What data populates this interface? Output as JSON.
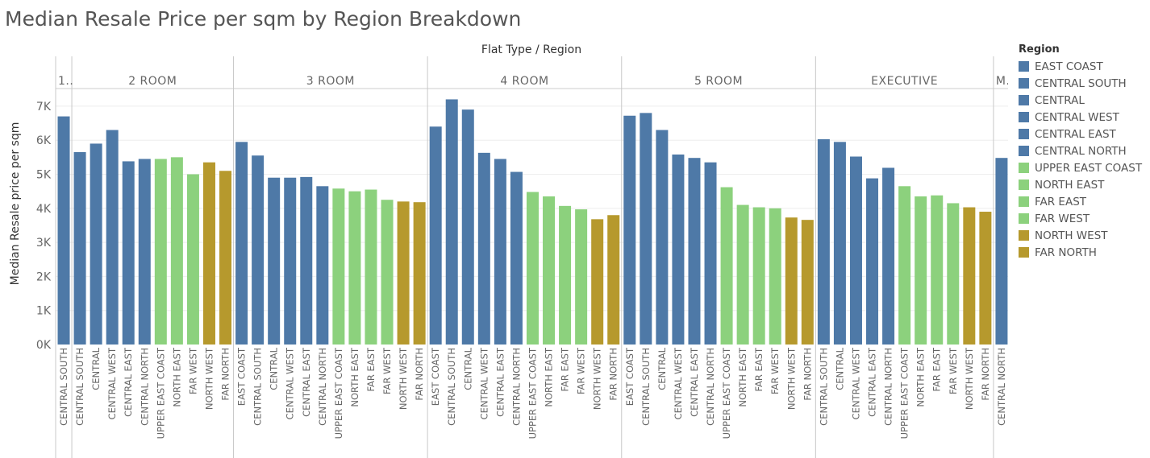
{
  "chart_data": {
    "type": "bar",
    "title": "Median Resale Price per sqm by Region Breakdown",
    "column_header": "Flat Type  /  Region",
    "ylabel": "Median Resale price per sqm",
    "ylim": [
      0,
      7500
    ],
    "yticks": [
      0,
      1000,
      2000,
      3000,
      4000,
      5000,
      6000,
      7000
    ],
    "ytick_labels": [
      "0K",
      "1K",
      "2K",
      "3K",
      "4K",
      "5K",
      "6K",
      "7K"
    ],
    "grid": true,
    "legend_position": "right",
    "legend_title": "Region",
    "legend": [
      {
        "name": "EAST COAST",
        "color": "#4e79a7"
      },
      {
        "name": "CENTRAL SOUTH",
        "color": "#4e79a7"
      },
      {
        "name": "CENTRAL",
        "color": "#4e79a7"
      },
      {
        "name": "CENTRAL WEST",
        "color": "#4e79a7"
      },
      {
        "name": "CENTRAL EAST",
        "color": "#4e79a7"
      },
      {
        "name": "CENTRAL NORTH",
        "color": "#4e79a7"
      },
      {
        "name": "UPPER EAST COAST",
        "color": "#8cd17d"
      },
      {
        "name": "NORTH EAST",
        "color": "#8cd17d"
      },
      {
        "name": "FAR EAST",
        "color": "#8cd17d"
      },
      {
        "name": "FAR WEST",
        "color": "#8cd17d"
      },
      {
        "name": "NORTH WEST",
        "color": "#b6992d"
      },
      {
        "name": "FAR NORTH",
        "color": "#b6992d"
      }
    ],
    "panels": [
      {
        "label": "1..",
        "bars": [
          [
            "CENTRAL SOUTH",
            6700
          ]
        ]
      },
      {
        "label": "2 ROOM",
        "bars": [
          [
            "CENTRAL SOUTH",
            5650
          ],
          [
            "CENTRAL",
            5900
          ],
          [
            "CENTRAL WEST",
            6300
          ],
          [
            "CENTRAL EAST",
            5380
          ],
          [
            "CENTRAL NORTH",
            5450
          ],
          [
            "UPPER EAST COAST",
            5450
          ],
          [
            "NORTH EAST",
            5500
          ],
          [
            "FAR WEST",
            5000
          ],
          [
            "NORTH WEST",
            5350
          ],
          [
            "FAR NORTH",
            5100
          ]
        ]
      },
      {
        "label": "3 ROOM",
        "bars": [
          [
            "EAST COAST",
            5950
          ],
          [
            "CENTRAL SOUTH",
            5550
          ],
          [
            "CENTRAL",
            4900
          ],
          [
            "CENTRAL WEST",
            4900
          ],
          [
            "CENTRAL EAST",
            4920
          ],
          [
            "CENTRAL NORTH",
            4650
          ],
          [
            "UPPER EAST COAST",
            4580
          ],
          [
            "NORTH EAST",
            4500
          ],
          [
            "FAR EAST",
            4550
          ],
          [
            "FAR WEST",
            4250
          ],
          [
            "NORTH WEST",
            4200
          ],
          [
            "FAR NORTH",
            4180
          ]
        ]
      },
      {
        "label": "4 ROOM",
        "bars": [
          [
            "EAST COAST",
            6400
          ],
          [
            "CENTRAL SOUTH",
            7200
          ],
          [
            "CENTRAL",
            6900
          ],
          [
            "CENTRAL WEST",
            5630
          ],
          [
            "CENTRAL EAST",
            5450
          ],
          [
            "CENTRAL NORTH",
            5070
          ],
          [
            "UPPER EAST COAST",
            4480
          ],
          [
            "NORTH EAST",
            4350
          ],
          [
            "FAR EAST",
            4070
          ],
          [
            "FAR WEST",
            3970
          ],
          [
            "NORTH WEST",
            3680
          ],
          [
            "FAR NORTH",
            3800
          ]
        ]
      },
      {
        "label": "5 ROOM",
        "bars": [
          [
            "EAST COAST",
            6720
          ],
          [
            "CENTRAL SOUTH",
            6800
          ],
          [
            "CENTRAL",
            6300
          ],
          [
            "CENTRAL WEST",
            5580
          ],
          [
            "CENTRAL EAST",
            5480
          ],
          [
            "CENTRAL NORTH",
            5350
          ],
          [
            "UPPER EAST COAST",
            4620
          ],
          [
            "NORTH EAST",
            4100
          ],
          [
            "FAR EAST",
            4030
          ],
          [
            "FAR WEST",
            4000
          ],
          [
            "NORTH WEST",
            3730
          ],
          [
            "FAR NORTH",
            3660
          ]
        ]
      },
      {
        "label": "EXECUTIVE",
        "bars": [
          [
            "CENTRAL SOUTH",
            6030
          ],
          [
            "CENTRAL",
            5950
          ],
          [
            "CENTRAL WEST",
            5520
          ],
          [
            "CENTRAL EAST",
            4880
          ],
          [
            "CENTRAL NORTH",
            5190
          ],
          [
            "UPPER EAST COAST",
            4650
          ],
          [
            "NORTH EAST",
            4350
          ],
          [
            "FAR EAST",
            4380
          ],
          [
            "FAR WEST",
            4150
          ],
          [
            "NORTH WEST",
            4030
          ],
          [
            "FAR NORTH",
            3900
          ]
        ]
      },
      {
        "label": "M..",
        "bars": [
          [
            "CENTRAL NORTH",
            5480
          ]
        ]
      }
    ]
  }
}
